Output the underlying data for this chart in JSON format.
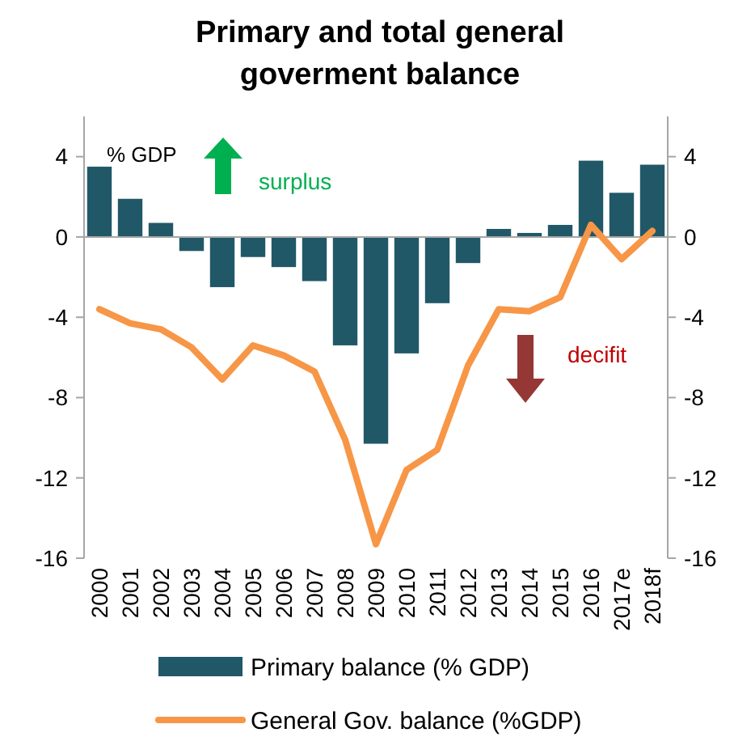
{
  "chart_data": {
    "type": "bar",
    "title": "Primary and total general goverment balance",
    "categories": [
      "2000",
      "2001",
      "2002",
      "2003",
      "2004",
      "2005",
      "2006",
      "2007",
      "2008",
      "2009",
      "2010",
      "2011",
      "2012",
      "2013",
      "2014",
      "2015",
      "2016",
      "2017e",
      "2018f"
    ],
    "series": [
      {
        "name": "Primary balance (% GDP)",
        "color": "#215868",
        "values": [
          3.5,
          1.9,
          0.7,
          -0.7,
          -2.5,
          -1.0,
          -1.5,
          -2.2,
          -5.4,
          -10.3,
          -5.8,
          -3.3,
          -1.3,
          0.4,
          0.2,
          0.6,
          3.8,
          2.2,
          3.6
        ]
      },
      {
        "name": "General Gov. balance (%GDP)",
        "type": "line",
        "color": "#f79646",
        "values": [
          -3.6,
          -4.3,
          -4.6,
          -5.5,
          -7.1,
          -5.4,
          -5.9,
          -6.7,
          -10.1,
          -15.3,
          -11.6,
          -10.6,
          -6.4,
          -3.6,
          -3.7,
          -3.0,
          0.6,
          -1.1,
          0.3
        ]
      }
    ],
    "ylim": [
      -16,
      6
    ],
    "yticks": [
      -16,
      -12,
      -8,
      -4,
      0,
      4
    ],
    "y2lim": [
      -16,
      6
    ],
    "y2ticks": [
      -16,
      -12,
      -8,
      -4,
      0,
      4
    ],
    "annotations": [
      "% GDP",
      "surplus",
      "decifit"
    ],
    "legend": "bottom",
    "marker": "none",
    "line_style": "solid"
  }
}
